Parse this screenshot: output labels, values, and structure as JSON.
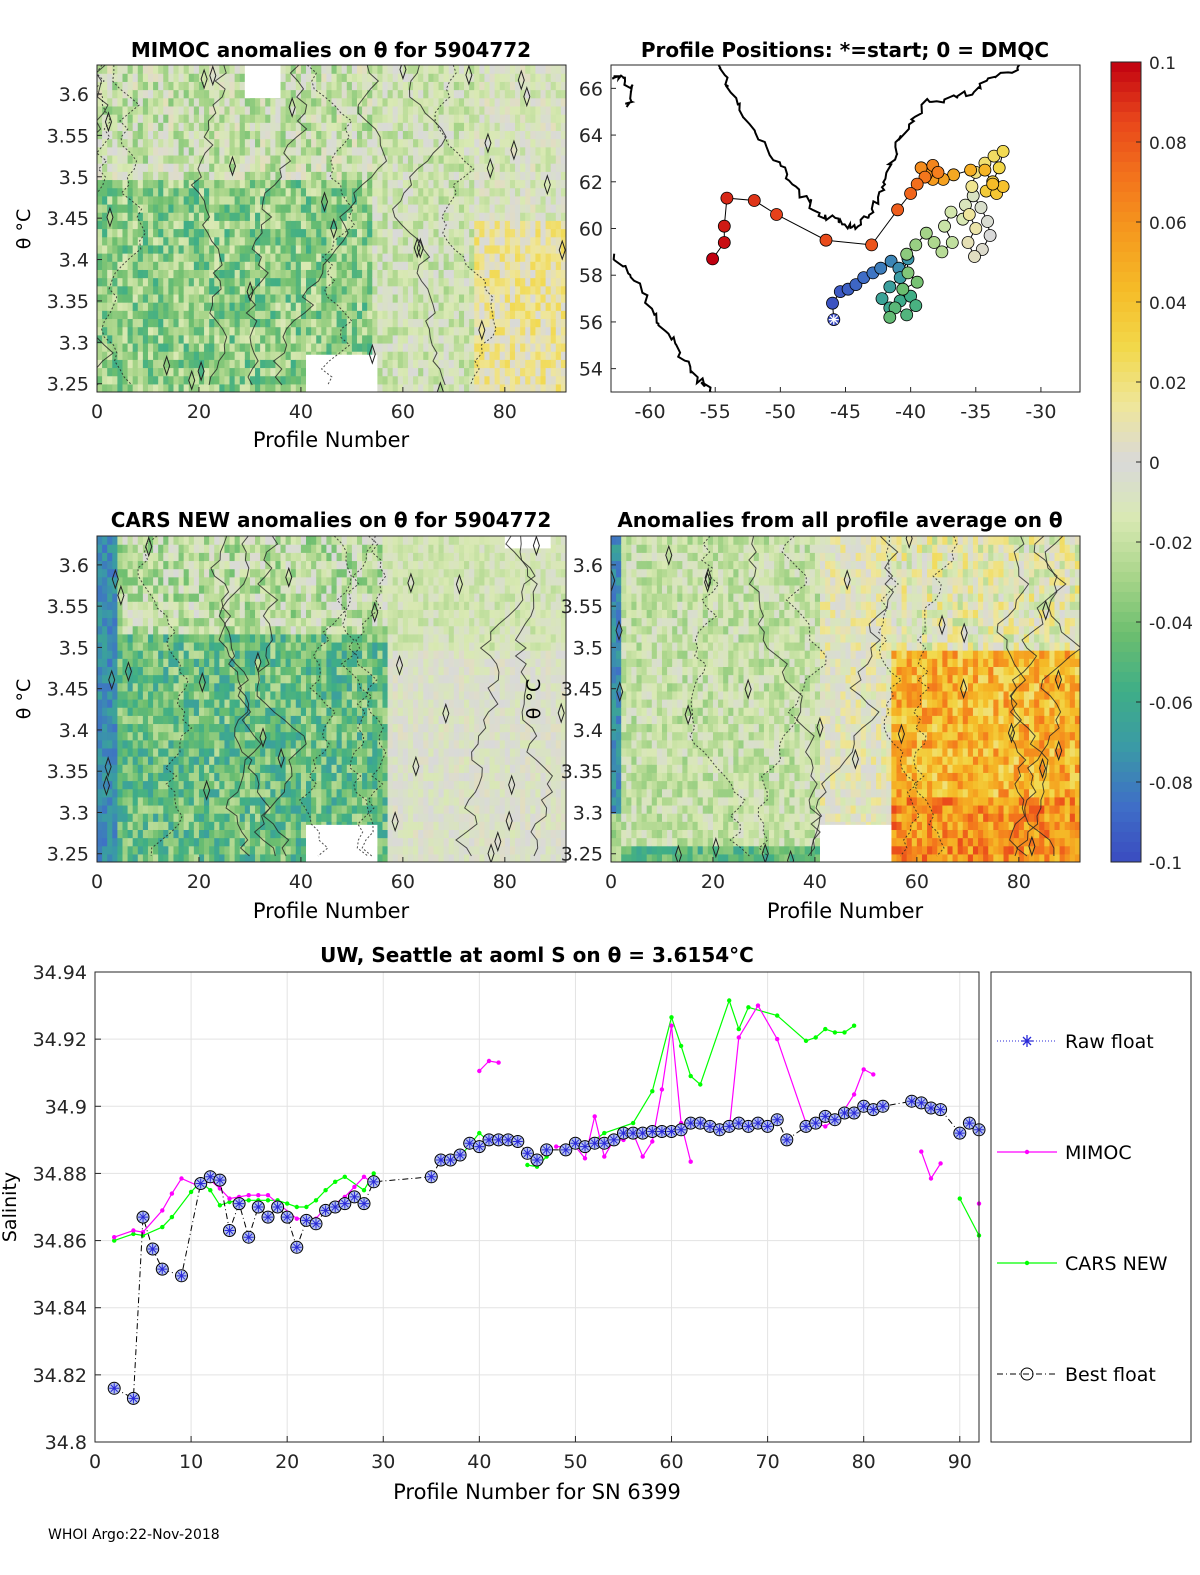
{
  "footer": "WHOI Argo:22-Nov-2018",
  "colorbar": {
    "ticks": [
      "0.1",
      "0.08",
      "0.06",
      "0.04",
      "0.02",
      "0",
      "-0.02",
      "-0.04",
      "-0.06",
      "-0.08",
      "-0.1"
    ],
    "range": [
      -0.1,
      0.1
    ],
    "colormap": [
      "#3b4cc0",
      "#3f6fc7",
      "#3a9aa6",
      "#3fae86",
      "#6dbe6f",
      "#a9d58a",
      "#d9e9b3",
      "#d9d9d9",
      "#efe69a",
      "#f2d84a",
      "#f5bc28",
      "#f59a1e",
      "#f3731c",
      "#e8451b",
      "#c00010"
    ]
  },
  "chart_data": [
    {
      "type": "heatmap",
      "name": "mimoc",
      "title": "MIMOC anomalies on θ  for 5904772",
      "xlabel": "Profile Number",
      "ylabel": "θ °C",
      "xticks": [
        "0",
        "20",
        "40",
        "60",
        "80"
      ],
      "yticks": [
        "3.6",
        "3.55",
        "3.5",
        "3.45",
        "3.4",
        "3.35",
        "3.3",
        "3.25"
      ],
      "xlim": [
        0,
        92
      ],
      "ylim": [
        3.24,
        3.635
      ],
      "pattern": "mostly negative (-0.02 to -0.06) for profiles 0-55, near zero to positive (+0.02) for profiles 75-92"
    },
    {
      "type": "line",
      "name": "positions",
      "title": "Profile Positions: *=start; 0 = DMQC",
      "xticks": [
        "-60",
        "-55",
        "-50",
        "-45",
        "-40",
        "-35",
        "-30"
      ],
      "yticks": [
        "66",
        "64",
        "62",
        "60",
        "58",
        "56",
        "54"
      ],
      "xlim": [
        -63,
        -27
      ],
      "ylim": [
        53,
        67
      ],
      "start": [
        -45.9,
        56.1
      ],
      "track": [
        [
          -45.9,
          56.1
        ],
        [
          -46.0,
          56.8
        ],
        [
          -45.4,
          57.3
        ],
        [
          -44.8,
          57.4
        ],
        [
          -44.2,
          57.6
        ],
        [
          -43.6,
          57.9
        ],
        [
          -42.9,
          58.1
        ],
        [
          -42.3,
          58.3
        ],
        [
          -41.5,
          58.6
        ],
        [
          -40.9,
          58.3
        ],
        [
          -40.2,
          58.7
        ],
        [
          -40.8,
          57.9
        ],
        [
          -41.6,
          57.5
        ],
        [
          -42.2,
          57.0
        ],
        [
          -41.6,
          56.6
        ],
        [
          -40.8,
          56.9
        ],
        [
          -40.0,
          57.1
        ],
        [
          -39.6,
          56.7
        ],
        [
          -40.3,
          56.3
        ],
        [
          -41.2,
          56.6
        ],
        [
          -41.6,
          56.2
        ],
        [
          -40.6,
          57.4
        ],
        [
          -39.5,
          57.7
        ],
        [
          -40.2,
          58.1
        ],
        [
          -40.3,
          58.9
        ],
        [
          -39.6,
          59.3
        ],
        [
          -38.8,
          59.8
        ],
        [
          -38.2,
          59.4
        ],
        [
          -37.6,
          59.0
        ],
        [
          -36.8,
          59.4
        ],
        [
          -37.4,
          60.1
        ],
        [
          -36.9,
          60.7
        ],
        [
          -36.0,
          60.4
        ],
        [
          -35.8,
          61.0
        ],
        [
          -35.2,
          61.4
        ],
        [
          -34.6,
          60.9
        ],
        [
          -34.1,
          60.3
        ],
        [
          -33.9,
          59.7
        ],
        [
          -34.5,
          59.1
        ],
        [
          -35.1,
          58.8
        ],
        [
          -35.6,
          59.4
        ],
        [
          -35.0,
          60.0
        ],
        [
          -35.5,
          60.6
        ],
        [
          -35.3,
          61.8
        ],
        [
          -35.0,
          62.4
        ],
        [
          -34.3,
          62.8
        ],
        [
          -33.6,
          63.1
        ],
        [
          -32.9,
          63.3
        ],
        [
          -33.2,
          62.6
        ],
        [
          -33.7,
          62.0
        ],
        [
          -34.2,
          61.6
        ],
        [
          -33.4,
          61.5
        ],
        [
          -32.9,
          61.8
        ],
        [
          -33.7,
          61.9
        ],
        [
          -34.3,
          62.5
        ],
        [
          -35.4,
          62.5
        ],
        [
          -36.7,
          62.3
        ],
        [
          -37.5,
          62.1
        ],
        [
          -38.3,
          62.1
        ],
        [
          -38.8,
          62.3
        ],
        [
          -39.2,
          62.6
        ],
        [
          -38.3,
          62.7
        ],
        [
          -37.9,
          62.4
        ],
        [
          -38.9,
          62.2
        ],
        [
          -39.5,
          61.9
        ],
        [
          -40.0,
          61.5
        ],
        [
          -41.0,
          60.8
        ],
        [
          -43.0,
          59.3
        ],
        [
          -46.5,
          59.5
        ],
        [
          -50.3,
          60.6
        ],
        [
          -52.0,
          61.2
        ],
        [
          -54.1,
          61.3
        ],
        [
          -54.3,
          60.1
        ],
        [
          -54.3,
          59.4
        ],
        [
          -55.2,
          58.7
        ]
      ]
    },
    {
      "type": "heatmap",
      "name": "cars",
      "title": "CARS NEW anomalies on θ for 5904772",
      "xlabel": "Profile Number",
      "ylabel": "θ °C",
      "xticks": [
        "0",
        "20",
        "40",
        "60",
        "80"
      ],
      "yticks": [
        "3.6",
        "3.55",
        "3.5",
        "3.45",
        "3.4",
        "3.35",
        "3.3",
        "3.25"
      ],
      "xlim": [
        0,
        92
      ],
      "ylim": [
        3.24,
        3.635
      ],
      "pattern": "strongly negative (-0.03 to -0.08) for profiles 0-58, near zero for profiles 58-92"
    },
    {
      "type": "heatmap",
      "name": "allavg",
      "title": "Anomalies from all profile average on θ",
      "xlabel": "Profile Number",
      "ylabel": "θ °C",
      "xticks": [
        "0",
        "20",
        "40",
        "60",
        "80"
      ],
      "yticks": [
        "3.6",
        "3.55",
        "3.5",
        "3.45",
        "3.4",
        "3.35",
        "3.3",
        "3.25"
      ],
      "xlim": [
        0,
        92
      ],
      "ylim": [
        3.24,
        3.635
      ],
      "pattern": "slightly negative (-0.02) for profiles 0-40, near zero 40-55, strongly positive (+0.04 to +0.07) for profiles 55-90"
    },
    {
      "type": "line",
      "name": "salinity",
      "title": "UW, Seattle at aoml S on θ = 3.6154°C",
      "xlabel": "Profile Number for SN 6399",
      "ylabel": "Salinity",
      "xticks": [
        "0",
        "10",
        "20",
        "30",
        "40",
        "50",
        "60",
        "70",
        "80",
        "90"
      ],
      "yticks": [
        "34.94",
        "34.92",
        "34.9",
        "34.88",
        "34.86",
        "34.84",
        "34.82",
        "34.8"
      ],
      "xlim": [
        0,
        92
      ],
      "ylim": [
        34.8,
        34.94
      ],
      "legend": [
        "Raw float",
        "MIMOC",
        "CARS NEW",
        "Best float"
      ],
      "series": [
        {
          "name": "Best float",
          "x": [
            2,
            4,
            5,
            6,
            7,
            9,
            11,
            12,
            13,
            14,
            15,
            16,
            17,
            18,
            19,
            20,
            21,
            22,
            23,
            24,
            25,
            26,
            27,
            28,
            29,
            35,
            36,
            37,
            38,
            39,
            40,
            41,
            42,
            43,
            44,
            45,
            46,
            47,
            49,
            50,
            51,
            52,
            53,
            54,
            55,
            56,
            57,
            58,
            59,
            60,
            61,
            62,
            63,
            64,
            65,
            66,
            67,
            68,
            69,
            70,
            71,
            72,
            74,
            75,
            76,
            77,
            78,
            79,
            80,
            81,
            82,
            85,
            86,
            87,
            88,
            90,
            91,
            92
          ],
          "y": [
            34.816,
            34.813,
            34.867,
            34.8575,
            34.8515,
            34.8495,
            34.877,
            34.879,
            34.878,
            34.863,
            34.871,
            34.861,
            34.87,
            34.867,
            34.87,
            34.867,
            34.858,
            34.866,
            34.865,
            34.869,
            34.87,
            34.871,
            34.873,
            34.871,
            34.8775,
            34.879,
            34.884,
            34.884,
            34.8855,
            34.889,
            34.888,
            34.89,
            34.89,
            34.89,
            34.8895,
            34.886,
            34.884,
            34.887,
            34.887,
            34.889,
            34.888,
            34.889,
            34.889,
            34.89,
            34.892,
            34.892,
            34.892,
            34.8925,
            34.8925,
            34.8925,
            34.893,
            34.895,
            34.895,
            34.894,
            34.893,
            34.894,
            34.895,
            34.894,
            34.895,
            34.894,
            34.896,
            34.89,
            34.894,
            34.895,
            34.897,
            34.896,
            34.898,
            34.898,
            34.9,
            34.899,
            34.9,
            34.9015,
            34.901,
            34.8995,
            34.899,
            34.892,
            34.895,
            34.893
          ]
        },
        {
          "name": "MIMOC",
          "x": [
            2,
            4,
            5,
            7,
            8,
            9,
            11,
            12,
            13,
            14,
            15,
            16,
            17,
            18,
            21,
            22,
            23,
            24,
            25,
            26,
            27,
            28,
            29,
            40,
            41,
            42,
            48,
            50,
            51,
            52,
            53,
            54,
            55,
            56,
            57,
            58,
            59,
            60,
            61,
            62,
            66,
            67,
            69,
            71,
            74,
            75,
            76,
            77,
            78,
            79,
            80,
            81,
            86,
            87,
            88,
            92
          ],
          "y": [
            34.861,
            34.863,
            34.8625,
            34.869,
            34.874,
            34.8785,
            34.876,
            34.878,
            34.8755,
            34.8725,
            34.873,
            34.8735,
            34.8735,
            34.8735,
            34.8665,
            34.8665,
            34.8665,
            34.87,
            34.871,
            34.873,
            34.876,
            34.879,
            34.877,
            34.9105,
            34.9135,
            34.913,
            34.888,
            34.888,
            34.8845,
            34.897,
            34.885,
            34.89,
            34.89,
            34.892,
            34.885,
            34.8895,
            34.905,
            34.924,
            34.895,
            34.8835,
            34.893,
            34.9205,
            34.93,
            34.92,
            34.895,
            34.895,
            34.894,
            34.896,
            34.899,
            34.9035,
            34.911,
            34.9095,
            34.8865,
            34.8785,
            34.883,
            34.871
          ]
        },
        {
          "name": "CARS NEW",
          "x": [
            2,
            4,
            5,
            7,
            8,
            10,
            11,
            12,
            13,
            14,
            15,
            16,
            17,
            18,
            19,
            20,
            21,
            22,
            23,
            24,
            25,
            26,
            28,
            29,
            36,
            37,
            38,
            40,
            41,
            45,
            46,
            47,
            52,
            53,
            56,
            58,
            60,
            61,
            62,
            63,
            66,
            67,
            68,
            71,
            74,
            75,
            76,
            77,
            78,
            79,
            90,
            92
          ],
          "y": [
            34.86,
            34.862,
            34.8615,
            34.864,
            34.867,
            34.8745,
            34.8775,
            34.875,
            34.8705,
            34.8715,
            34.872,
            34.872,
            34.872,
            34.872,
            34.872,
            34.871,
            34.87,
            34.87,
            34.872,
            34.875,
            34.8775,
            34.879,
            34.875,
            34.88,
            34.884,
            34.883,
            34.885,
            34.892,
            34.8895,
            34.8825,
            34.882,
            34.885,
            34.89,
            34.892,
            34.895,
            34.9045,
            34.9265,
            34.918,
            34.909,
            34.9065,
            34.9315,
            34.923,
            34.9295,
            34.927,
            34.9195,
            34.9205,
            34.923,
            34.922,
            34.922,
            34.924,
            34.8725,
            34.8615
          ]
        }
      ]
    }
  ]
}
